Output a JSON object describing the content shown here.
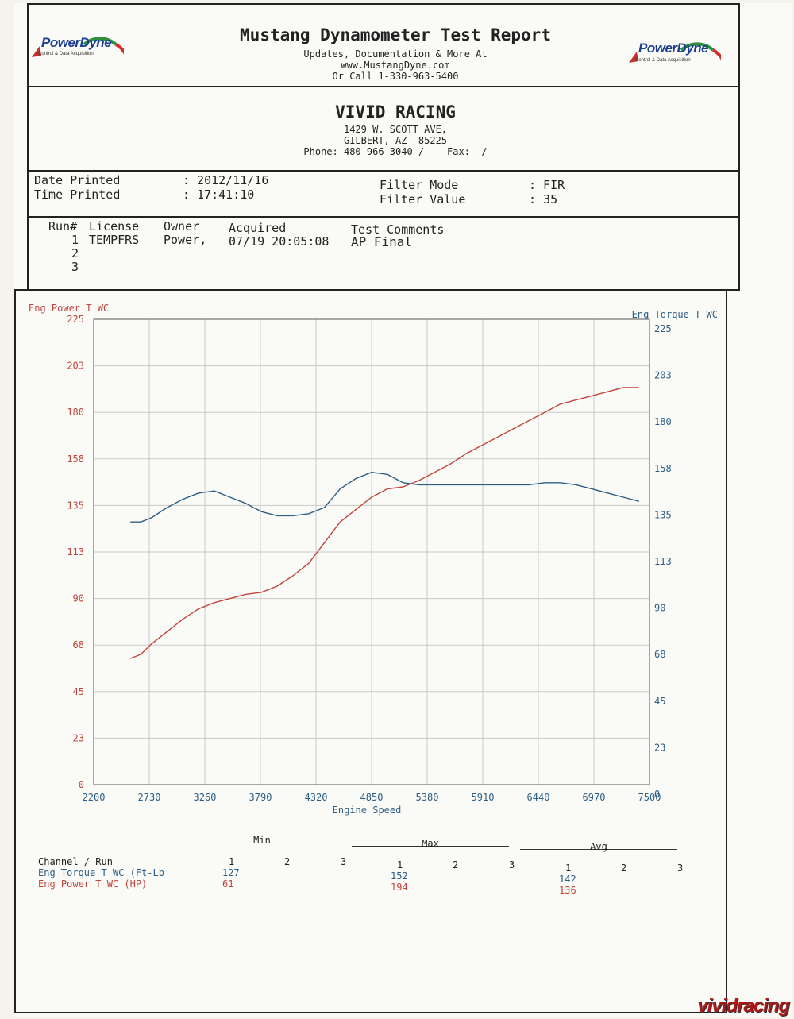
{
  "header": {
    "title": "Mustang Dynamometer Test Report",
    "line1": "Updates, Documentation & More At",
    "line2": "www.MustangDyne.com",
    "line3": "Or Call 1-330-963-5400",
    "logo_text": "PowerDyne",
    "logo_tagline": "Control & Data Acquisition"
  },
  "shop": {
    "name": "VIVID RACING",
    "address1": "1429 W. SCOTT AVE,",
    "address2": "GILBERT, AZ  85225",
    "phone": "Phone: 480-966-3040 /  - Fax:  /"
  },
  "print_info": {
    "date_label": "Date Printed",
    "date_value": ": 2012/11/16",
    "time_label": "Time Printed",
    "time_value": ": 17:41:10",
    "filter_mode_label": "Filter Mode",
    "filter_mode_value": ": FIR",
    "filter_value_label": "Filter Value",
    "filter_value_value": ": 35"
  },
  "runs": {
    "headers": [
      "Run#",
      "License",
      "Owner",
      "Acquired",
      "Test Comments"
    ],
    "rows": [
      {
        "run": "1",
        "license": "TEMPFRS",
        "owner": "Power,",
        "acquired": "07/19 20:05:08",
        "comments": "AP Final"
      },
      {
        "run": "2",
        "license": "",
        "owner": "",
        "acquired": "",
        "comments": ""
      },
      {
        "run": "3",
        "license": "",
        "owner": "",
        "acquired": "",
        "comments": ""
      }
    ]
  },
  "chart_data": {
    "type": "line",
    "xlabel": "Engine Speed",
    "ylabel_left": "Eng Power T WC",
    "ylabel_right": "Eng Torque T WC",
    "xlim": [
      2200,
      7500
    ],
    "ylim_left": [
      0,
      225
    ],
    "ylim_right": [
      0,
      225
    ],
    "x_ticks": [
      "2200",
      "2730",
      "3260",
      "3790",
      "4320",
      "4850",
      "5380",
      "5910",
      "6440",
      "6970",
      "7500"
    ],
    "y_ticks_left": [
      "0",
      "23",
      "45",
      "68",
      "90",
      "113",
      "135",
      "158",
      "180",
      "203",
      "225"
    ],
    "y_ticks_right": [
      "0",
      "23",
      "45",
      "68",
      "90",
      "113",
      "135",
      "158",
      "180",
      "203",
      "225"
    ],
    "grid": true,
    "colors": {
      "power": "#c0453d",
      "torque": "#2d5f86"
    },
    "series": [
      {
        "axis": "left",
        "color": "#c0453d",
        "x": [
          2550,
          2650,
          2750,
          2900,
          3050,
          3200,
          3350,
          3500,
          3650,
          3800,
          3950,
          4100,
          4250,
          4400,
          4550,
          4700,
          4850,
          5000,
          5150,
          5300,
          5450,
          5600,
          5750,
          5900,
          6050,
          6200,
          6350,
          6500,
          6650,
          6800,
          6950,
          7100,
          7250,
          7400
        ],
        "values": [
          61,
          63,
          68,
          74,
          80,
          85,
          88,
          90,
          92,
          93,
          96,
          101,
          107,
          117,
          127,
          133,
          139,
          143,
          144,
          147,
          151,
          155,
          160,
          164,
          168,
          172,
          176,
          180,
          184,
          186,
          188,
          190,
          192,
          192
        ]
      },
      {
        "axis": "right",
        "color": "#2d5f86",
        "x": [
          2550,
          2650,
          2750,
          2900,
          3050,
          3200,
          3350,
          3500,
          3650,
          3800,
          3950,
          4100,
          4250,
          4400,
          4550,
          4700,
          4850,
          5000,
          5150,
          5300,
          5450,
          5600,
          5750,
          5900,
          6050,
          6200,
          6350,
          6500,
          6650,
          6800,
          6950,
          7100,
          7250,
          7400
        ],
        "values": [
          127,
          127,
          129,
          134,
          138,
          141,
          142,
          139,
          136,
          132,
          130,
          130,
          131,
          134,
          143,
          148,
          151,
          150,
          146,
          145,
          145,
          145,
          145,
          145,
          145,
          145,
          145,
          146,
          146,
          145,
          143,
          141,
          139,
          137
        ]
      }
    ]
  },
  "summary": {
    "groups": [
      "Min",
      "Max",
      "Avg"
    ],
    "channel_header": "Channel / Run",
    "run_numbers": [
      "1",
      "2",
      "3"
    ],
    "rows": [
      {
        "name": "Eng Torque T WC (Ft-Lb",
        "min": "127",
        "max": "152",
        "avg": "142",
        "color": "#2d5f86"
      },
      {
        "name": "Eng Power T WC (HP)",
        "min": "61",
        "max": "194",
        "avg": "136",
        "color": "#c0453d"
      }
    ]
  },
  "watermark": "vividracing"
}
